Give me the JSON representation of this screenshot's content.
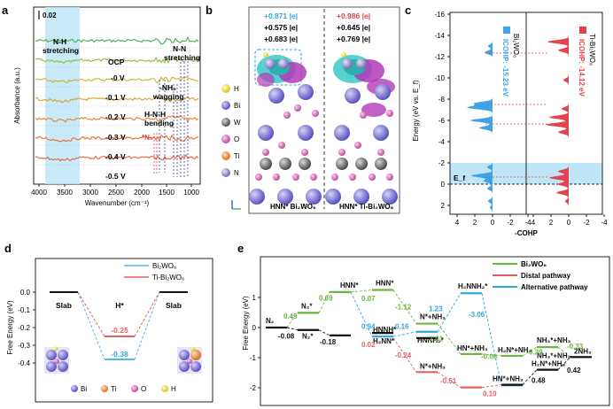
{
  "panels": {
    "a": {
      "label": "a",
      "ylabel": "Absorbance (a.u.)",
      "xlabel": "Wavenumber (cm⁻¹)",
      "scale_bar": "0.02",
      "xticks": [
        "4000",
        "3500",
        "3000",
        "2500",
        "2000",
        "1500",
        "1000"
      ],
      "annotations": {
        "nh": "N-H",
        "nh2": "stretching",
        "ocp": "OCP",
        "nn": "N-N",
        "nn2": "stretching",
        "nh2w": "-NH₂",
        "nh2w2": "wagging",
        "hnh": "H-N-H",
        "hnh2": "bending",
        "n2": "*N₂"
      },
      "series": [
        "OCP",
        "-0 V",
        "-0.1 V",
        "-0.2 V",
        "-0.3 V",
        "-0.4 V",
        "-0.5 V"
      ],
      "series_labels": {
        "s1": "-0 V",
        "s2": "-0.1 V",
        "s3": "-0.2 V",
        "s4": "-0.3 V",
        "s5": "-0.4 V",
        "s6": "-0.5 V"
      },
      "colors": [
        "#55b05a",
        "#9cbf4a",
        "#c9b83e",
        "#e0a23a",
        "#e88a3c",
        "#e8743e",
        "#e46a4c"
      ]
    },
    "b": {
      "label": "b",
      "left": {
        "v1": "+0.871 |e|",
        "v2": "+0.575 |e|",
        "v3": "+0.683 |e|",
        "caption": "HNN* Bi₂WO₆"
      },
      "right": {
        "v1": "+0.986 |e|",
        "v2": "+0.645 |e|",
        "v3": "+0.769 |e|",
        "caption": "HNN* Ti-Bi₂WO₆"
      },
      "legend": [
        "H",
        "Bi",
        "W",
        "O",
        "Ti",
        "N"
      ],
      "legend_colors": [
        "#f3ea3a",
        "#8c84dc",
        "#8a8a8a",
        "#d77ac0",
        "#e98a2a",
        "#8f90c8"
      ]
    },
    "c": {
      "label": "c",
      "ylabel": "Energy (eV vs. E_f)",
      "xlabel": "-COHP",
      "yticks": [
        "-16",
        "-14",
        "-12",
        "-10",
        "-8",
        "-6",
        "-4",
        "-2",
        "0",
        "2"
      ],
      "xticks_left": [
        "4",
        "2",
        "0",
        "-2",
        "-4"
      ],
      "xticks_right": [
        "4",
        "2",
        "0",
        "-2",
        "-4"
      ],
      "left_label": "ICOHP: -15.23 eV",
      "left_name": "Bi₂WO₆",
      "right_label": "ICOHP: -14.12 eV",
      "right_name": "Ti-Bi₂WO₆",
      "ef": "E_f",
      "colors": {
        "left": "#3ea3e8",
        "right": "#e2434c"
      }
    },
    "d": {
      "label": "d",
      "ylabel": "Free Energy (eV)",
      "legend": [
        "Bi₂WO₆",
        "Ti-Bi₂WO₆"
      ],
      "states": [
        "Slab",
        "H*",
        "Slab"
      ],
      "yticks": [
        "0.0",
        "-0.1",
        "-0.2",
        "-0.3",
        "-0.4"
      ],
      "values": {
        "bi": -0.38,
        "ti": -0.25
      },
      "value_labels": {
        "bi": "-0.38",
        "ti": "-0.25"
      },
      "atom_legend": [
        "Bi",
        "Ti",
        "O",
        "H"
      ]
    },
    "e": {
      "label": "e",
      "ylabel": "Free Energy (eV)",
      "legend": [
        "Bi₂WO₆",
        "Distal pathway",
        "Alternative pathway"
      ],
      "yticks": [
        "1",
        "0",
        "-1",
        "-2"
      ],
      "state_labels": {
        "n2": "N₂",
        "n2s": "N₂*",
        "n2s_b": "N₂*",
        "hnn": "HNN*",
        "hnn_b": "HNN*",
        "hnnh": "HNNH*",
        "h2nn": "H₂NN*",
        "hnnh_b": "HNNH₂*",
        "nnh3": "N*+NH₃",
        "nnh3_b": "N*+NH₃",
        "h2nnh2": "H₂NNH₂*",
        "hnnh3": "HN*+NH₃",
        "hnnh3_b": "HN*+NH₃",
        "h2nnh3": "H₂N*+NH₃",
        "h2nnh3_b": "H₂N*+NH₃",
        "nh3nh3": "NH₃*+NH₃",
        "nh3nh3_b": "NH₃*+NH₃",
        "twonh3": "2NH₃"
      },
      "steps": {
        "a": "0.49",
        "b": "-0.08",
        "c": "0.69",
        "d": "-0.18",
        "e": "0.07",
        "f": "-0.24",
        "g": "0.94",
        "h": "0.02",
        "i": "0.16",
        "j": "-1.12",
        "k": "1.23",
        "l": "-1.01",
        "m": "-0.51",
        "n": "-3.06",
        "o": "-0.06",
        "p": "0.10",
        "q": "0.48",
        "r": "0.29",
        "s": "-0.33",
        "t": "0.42"
      },
      "colors": {
        "bi": "#6bb640",
        "distal": "#e65f5f",
        "alt": "#2ea6e0",
        "black": "#111111"
      }
    }
  }
}
